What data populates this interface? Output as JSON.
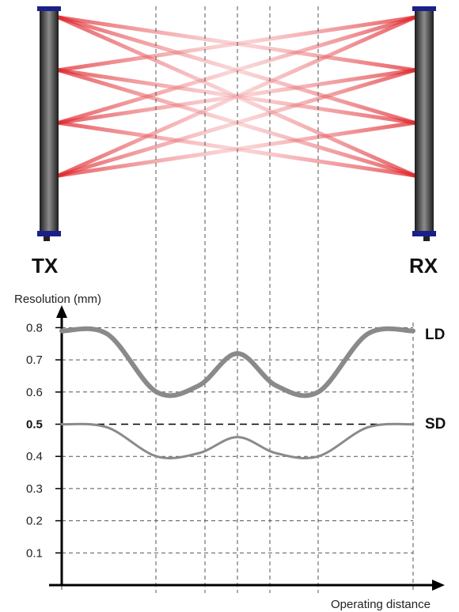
{
  "diagram": {
    "tx_label": "TX",
    "rx_label": "RX",
    "beam_count": 4,
    "colors": {
      "beam": "#d9272e",
      "bar_dark": "#2a2a2a",
      "bar_light": "#9a9a9a",
      "cap": "#1b1f8a",
      "curve": "#8a8a8a",
      "grid": "#555555"
    }
  },
  "chart": {
    "ylabel": "Resolution (mm)",
    "xlabel": "Operating distance",
    "yticks": [
      "0.1",
      "0.2",
      "0.3",
      "0.4",
      "0.5",
      "0.6",
      "0.7",
      "0.8"
    ],
    "bold_tick": "0.5",
    "curve_labels": {
      "ld": "LD",
      "sd": "SD"
    }
  },
  "chart_data": {
    "type": "line",
    "xlabel": "Operating distance",
    "ylabel": "Resolution (mm)",
    "ylim": [
      0,
      0.9
    ],
    "grid": true,
    "reference_line": 0.5,
    "series": [
      {
        "name": "LD",
        "x": [
          0,
          0.13,
          0.27,
          0.39,
          0.5,
          0.61,
          0.73,
          0.87,
          1.0
        ],
        "values": [
          0.79,
          0.78,
          0.6,
          0.62,
          0.72,
          0.62,
          0.6,
          0.78,
          0.79
        ]
      },
      {
        "name": "SD",
        "x": [
          0,
          0.13,
          0.27,
          0.39,
          0.5,
          0.61,
          0.73,
          0.87,
          1.0
        ],
        "values": [
          0.5,
          0.49,
          0.4,
          0.41,
          0.46,
          0.41,
          0.4,
          0.49,
          0.5
        ]
      }
    ]
  }
}
